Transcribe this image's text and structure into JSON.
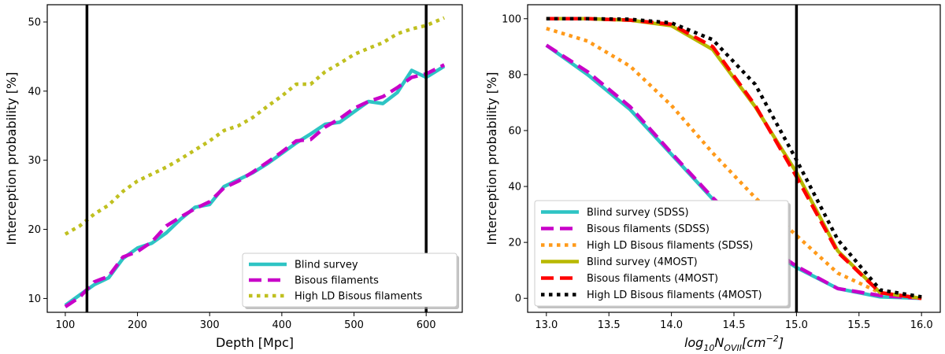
{
  "chart_data": [
    {
      "type": "line",
      "xlabel": "Depth [Mpc]",
      "ylabel": "Interception probability [%]",
      "xlim": [
        75,
        650
      ],
      "ylim": [
        8,
        52.5
      ],
      "xticks": [
        100,
        200,
        300,
        400,
        500,
        600
      ],
      "yticks": [
        10,
        20,
        30,
        40,
        50
      ],
      "vlines": [
        130,
        600
      ],
      "legend_position": "lower-right",
      "series": [
        {
          "name": "Blind survey",
          "color": "#2ec4c4",
          "style": "solid",
          "x": [
            100,
            120,
            140,
            160,
            180,
            200,
            220,
            240,
            260,
            280,
            300,
            320,
            340,
            360,
            380,
            400,
            420,
            440,
            460,
            480,
            500,
            520,
            540,
            560,
            580,
            600,
            625
          ],
          "y": [
            9.0,
            10.5,
            12.0,
            13.0,
            15.8,
            17.3,
            18.0,
            19.5,
            21.5,
            23.2,
            23.6,
            26.2,
            27.2,
            28.2,
            29.5,
            31.0,
            32.5,
            33.8,
            35.2,
            35.5,
            37.0,
            38.5,
            38.2,
            39.8,
            43.0,
            42.0,
            43.6
          ]
        },
        {
          "name": "Bisous filaments",
          "color": "#c800c8",
          "style": "dashed",
          "x": [
            100,
            120,
            140,
            160,
            180,
            200,
            220,
            240,
            260,
            280,
            300,
            320,
            340,
            360,
            380,
            400,
            420,
            440,
            460,
            480,
            500,
            520,
            540,
            560,
            580,
            600,
            625
          ],
          "y": [
            8.8,
            10.2,
            12.4,
            13.2,
            16.0,
            16.8,
            18.2,
            20.5,
            21.8,
            23.0,
            24.0,
            26.0,
            27.0,
            28.3,
            29.7,
            31.2,
            32.8,
            33.0,
            34.8,
            36.0,
            37.5,
            38.5,
            39.2,
            40.5,
            42.0,
            42.5,
            43.8
          ]
        },
        {
          "name": "High LD Bisous filaments",
          "color": "#c0c020",
          "style": "dotted",
          "x": [
            100,
            120,
            140,
            160,
            180,
            200,
            220,
            240,
            260,
            280,
            300,
            320,
            340,
            360,
            380,
            400,
            420,
            440,
            460,
            480,
            500,
            520,
            540,
            560,
            580,
            600,
            625
          ],
          "y": [
            19.3,
            20.5,
            22.2,
            23.5,
            25.5,
            27.0,
            28.0,
            29.0,
            30.2,
            31.5,
            32.8,
            34.3,
            35.0,
            36.2,
            37.8,
            39.3,
            41.0,
            41.0,
            42.8,
            44.0,
            45.3,
            46.2,
            47.0,
            48.3,
            49.0,
            49.5,
            50.6
          ]
        }
      ]
    },
    {
      "type": "line",
      "xlabel": "log10 N_OVII [cm^-2]",
      "xlabel_main": "log",
      "xlabel_sub1": "10",
      "xlabel_mid": "N",
      "xlabel_sub2": "OVII",
      "xlabel_unit": "[cm",
      "xlabel_sup": "−2",
      "xlabel_end": "]",
      "ylabel": "Interception probability [%]",
      "xlim": [
        12.85,
        16.15
      ],
      "ylim": [
        -5,
        105
      ],
      "xticks": [
        13.0,
        13.5,
        14.0,
        14.5,
        15.0,
        15.5,
        16.0
      ],
      "xtick_labels": [
        "13.0",
        "13.5",
        "14.0",
        "14.5",
        "15.0",
        "15.5",
        "16.0"
      ],
      "yticks": [
        0,
        20,
        40,
        60,
        80,
        100
      ],
      "vlines": [
        15.0
      ],
      "legend_position": "lower-left",
      "series": [
        {
          "name": "Blind survey (SDSS)",
          "color": "#2ec4c4",
          "style": "solid",
          "x": [
            13.0,
            13.33,
            13.67,
            14.0,
            14.33,
            14.67,
            15.0,
            15.33,
            15.67,
            16.0
          ],
          "y": [
            90.5,
            80.0,
            67.5,
            51.5,
            35.5,
            20.5,
            11.0,
            3.5,
            0.5,
            0.0
          ]
        },
        {
          "name": "Bisous filaments (SDSS)",
          "color": "#c800c8",
          "style": "dashed",
          "x": [
            13.0,
            13.33,
            13.67,
            14.0,
            14.33,
            14.67,
            15.0,
            15.33,
            15.67,
            16.0
          ],
          "y": [
            90.5,
            81.0,
            68.5,
            52.0,
            36.0,
            21.5,
            11.5,
            3.5,
            1.0,
            0.0
          ]
        },
        {
          "name": "High LD Bisous filaments (SDSS)",
          "color": "#ff9a1a",
          "style": "dotted",
          "x": [
            13.0,
            13.33,
            13.67,
            14.0,
            14.33,
            14.67,
            15.0,
            15.33,
            15.67,
            16.0
          ],
          "y": [
            96.5,
            92.0,
            83.0,
            69.0,
            52.0,
            36.0,
            22.5,
            9.0,
            2.0,
            0.0
          ]
        },
        {
          "name": "Blind survey (4MOST)",
          "color": "#b8b800",
          "style": "solid",
          "x": [
            13.0,
            13.33,
            13.67,
            14.0,
            14.33,
            14.67,
            15.0,
            15.33,
            15.67,
            16.0
          ],
          "y": [
            100.0,
            100.0,
            99.5,
            97.5,
            89.0,
            68.5,
            45.0,
            17.0,
            2.0,
            0.0
          ]
        },
        {
          "name": "Bisous filaments (4MOST)",
          "color": "#ff0000",
          "style": "dashed",
          "x": [
            13.0,
            13.33,
            13.67,
            14.0,
            14.33,
            14.67,
            15.0,
            15.33,
            15.67,
            16.0
          ],
          "y": [
            100.0,
            100.0,
            99.5,
            98.0,
            90.0,
            69.0,
            43.5,
            16.5,
            2.0,
            0.0
          ]
        },
        {
          "name": "High LD Bisous filaments (4MOST)",
          "color": "#000000",
          "style": "dotted",
          "x": [
            13.0,
            13.33,
            13.67,
            14.0,
            14.33,
            14.67,
            15.0,
            15.33,
            15.67,
            16.0
          ],
          "y": [
            100.0,
            100.0,
            99.8,
            98.5,
            92.5,
            76.5,
            49.5,
            21.0,
            3.0,
            0.5
          ]
        }
      ]
    }
  ]
}
